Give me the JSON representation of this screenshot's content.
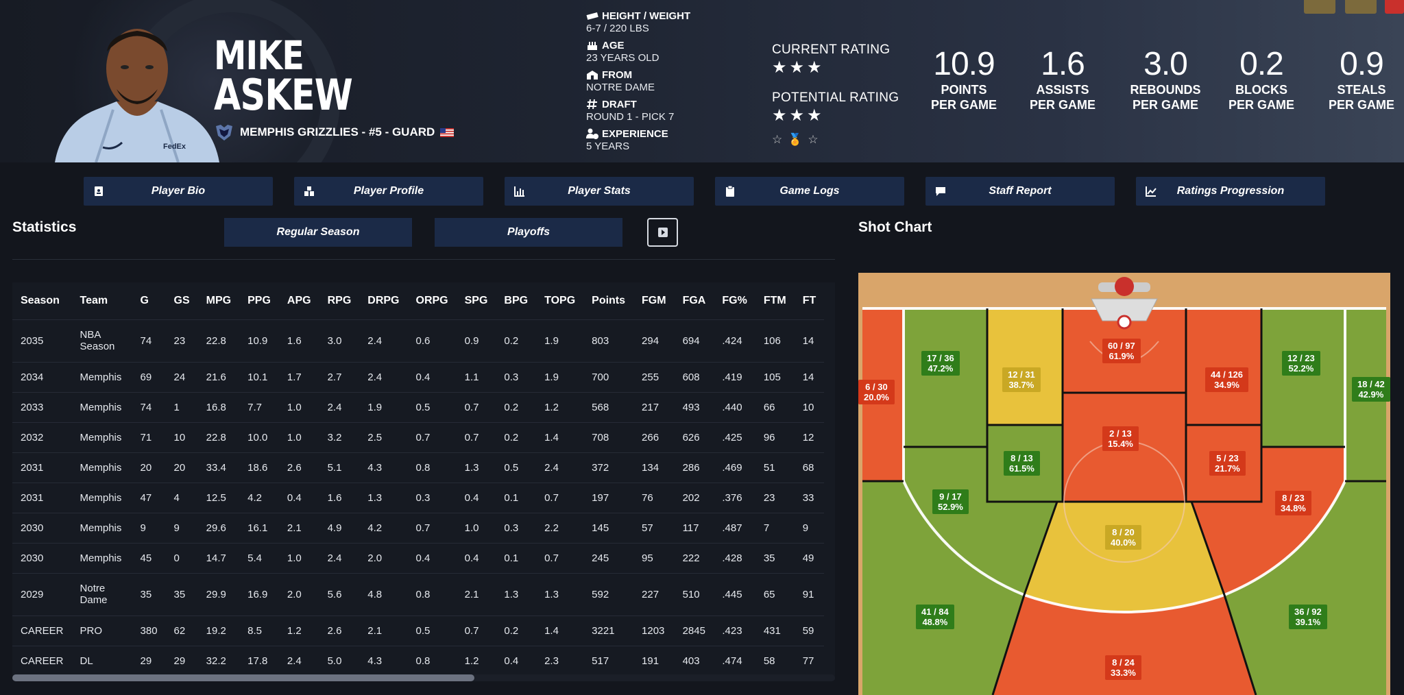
{
  "player": {
    "first_name": "MIKE",
    "last_name": "ASKEW",
    "team_line": "MEMPHIS GRIZZLIES - #5 - GUARD"
  },
  "bio": [
    {
      "label": "HEIGHT / WEIGHT",
      "value": "6-7 / 220 LBS",
      "icon": "ruler-icon"
    },
    {
      "label": "AGE",
      "value": "23 YEARS OLD",
      "icon": "cake-icon"
    },
    {
      "label": "FROM",
      "value": "NOTRE DAME",
      "icon": "school-icon"
    },
    {
      "label": "DRAFT",
      "value": "ROUND 1 - PICK 7",
      "icon": "hashtag-icon"
    },
    {
      "label": "EXPERIENCE",
      "value": "5 YEARS",
      "icon": "user-clock-icon"
    }
  ],
  "ratings": {
    "current_label": "CURRENT RATING",
    "current_stars": 3,
    "potential_label": "POTENTIAL RATING",
    "potential_stars": 3
  },
  "big_stats": [
    {
      "value": "10.9",
      "label1": "POINTS",
      "label2": "PER GAME"
    },
    {
      "value": "1.6",
      "label1": "ASSISTS",
      "label2": "PER GAME"
    },
    {
      "value": "3.0",
      "label1": "REBOUNDS",
      "label2": "PER GAME"
    },
    {
      "value": "0.2",
      "label1": "BLOCKS",
      "label2": "PER GAME"
    },
    {
      "value": "0.9",
      "label1": "STEALS",
      "label2": "PER GAME"
    }
  ],
  "nav": [
    {
      "label": "Player Bio",
      "icon": "id-card-icon"
    },
    {
      "label": "Player Profile",
      "icon": "boxes-icon"
    },
    {
      "label": "Player Stats",
      "icon": "bar-chart-icon"
    },
    {
      "label": "Game Logs",
      "icon": "clipboard-icon"
    },
    {
      "label": "Staff Report",
      "icon": "comment-icon"
    },
    {
      "label": "Ratings Progression",
      "icon": "line-chart-icon"
    }
  ],
  "statistics": {
    "title": "Statistics",
    "regular_season": "Regular Season",
    "playoffs": "Playoffs",
    "columns": [
      "Season",
      "Team",
      "G",
      "GS",
      "MPG",
      "PPG",
      "APG",
      "RPG",
      "DRPG",
      "ORPG",
      "SPG",
      "BPG",
      "TOPG",
      "Points",
      "FGM",
      "FGA",
      "FG%",
      "FTM",
      "FT"
    ],
    "rows": [
      [
        "2035",
        "NBA Season",
        "74",
        "23",
        "22.8",
        "10.9",
        "1.6",
        "3.0",
        "2.4",
        "0.6",
        "0.9",
        "0.2",
        "1.9",
        "803",
        "294",
        "694",
        ".424",
        "106",
        "14"
      ],
      [
        "2034",
        "Memphis",
        "69",
        "24",
        "21.6",
        "10.1",
        "1.7",
        "2.7",
        "2.4",
        "0.4",
        "1.1",
        "0.3",
        "1.9",
        "700",
        "255",
        "608",
        ".419",
        "105",
        "14"
      ],
      [
        "2033",
        "Memphis",
        "74",
        "1",
        "16.8",
        "7.7",
        "1.0",
        "2.4",
        "1.9",
        "0.5",
        "0.7",
        "0.2",
        "1.2",
        "568",
        "217",
        "493",
        ".440",
        "66",
        "10"
      ],
      [
        "2032",
        "Memphis",
        "71",
        "10",
        "22.8",
        "10.0",
        "1.0",
        "3.2",
        "2.5",
        "0.7",
        "0.7",
        "0.2",
        "1.4",
        "708",
        "266",
        "626",
        ".425",
        "96",
        "12"
      ],
      [
        "2031",
        "Memphis",
        "20",
        "20",
        "33.4",
        "18.6",
        "2.6",
        "5.1",
        "4.3",
        "0.8",
        "1.3",
        "0.5",
        "2.4",
        "372",
        "134",
        "286",
        ".469",
        "51",
        "68"
      ],
      [
        "2031",
        "Memphis",
        "47",
        "4",
        "12.5",
        "4.2",
        "0.4",
        "1.6",
        "1.3",
        "0.3",
        "0.4",
        "0.1",
        "0.7",
        "197",
        "76",
        "202",
        ".376",
        "23",
        "33"
      ],
      [
        "2030",
        "Memphis",
        "9",
        "9",
        "29.6",
        "16.1",
        "2.1",
        "4.9",
        "4.2",
        "0.7",
        "1.0",
        "0.3",
        "2.2",
        "145",
        "57",
        "117",
        ".487",
        "7",
        "9"
      ],
      [
        "2030",
        "Memphis",
        "45",
        "0",
        "14.7",
        "5.4",
        "1.0",
        "2.4",
        "2.0",
        "0.4",
        "0.4",
        "0.1",
        "0.7",
        "245",
        "95",
        "222",
        ".428",
        "35",
        "49"
      ],
      [
        "2029",
        "Notre Dame",
        "35",
        "35",
        "29.9",
        "16.9",
        "2.0",
        "5.6",
        "4.8",
        "0.8",
        "2.1",
        "1.3",
        "1.3",
        "592",
        "227",
        "510",
        ".445",
        "65",
        "91"
      ],
      [
        "CAREER",
        "PRO",
        "380",
        "62",
        "19.2",
        "8.5",
        "1.2",
        "2.6",
        "2.1",
        "0.5",
        "0.7",
        "0.2",
        "1.4",
        "3221",
        "1203",
        "2845",
        ".423",
        "431",
        "59"
      ],
      [
        "CAREER",
        "DL",
        "29",
        "29",
        "32.2",
        "17.8",
        "2.4",
        "5.0",
        "4.3",
        "0.8",
        "1.2",
        "0.4",
        "2.3",
        "517",
        "191",
        "403",
        ".474",
        "58",
        "77"
      ]
    ]
  },
  "shot_chart": {
    "title": "Shot Chart",
    "zones": [
      {
        "a": "6 / 30",
        "b": "20.0%",
        "color": "r"
      },
      {
        "a": "17 / 36",
        "b": "47.2%",
        "color": "g"
      },
      {
        "a": "12 / 31",
        "b": "38.7%",
        "color": "y"
      },
      {
        "a": "60 / 97",
        "b": "61.9%",
        "color": "r"
      },
      {
        "a": "44 / 126",
        "b": "34.9%",
        "color": "r"
      },
      {
        "a": "12 / 23",
        "b": "52.2%",
        "color": "g"
      },
      {
        "a": "18 / 42",
        "b": "42.9%",
        "color": "g"
      },
      {
        "a": "2 / 13",
        "b": "15.4%",
        "color": "r"
      },
      {
        "a": "8 / 13",
        "b": "61.5%",
        "color": "g"
      },
      {
        "a": "5 / 23",
        "b": "21.7%",
        "color": "r"
      },
      {
        "a": "9 / 17",
        "b": "52.9%",
        "color": "g"
      },
      {
        "a": "8 / 23",
        "b": "34.8%",
        "color": "r"
      },
      {
        "a": "8 / 20",
        "b": "40.0%",
        "color": "y"
      },
      {
        "a": "41 / 84",
        "b": "48.8%",
        "color": "g"
      },
      {
        "a": "36 / 92",
        "b": "39.1%",
        "color": "g"
      },
      {
        "a": "8 / 24",
        "b": "33.3%",
        "color": "r"
      }
    ]
  },
  "colors": {
    "accent_nav": "#1b2a47",
    "zone_red": "#e85a30",
    "zone_green": "#7ea33a",
    "zone_yellow": "#e8c23c"
  }
}
